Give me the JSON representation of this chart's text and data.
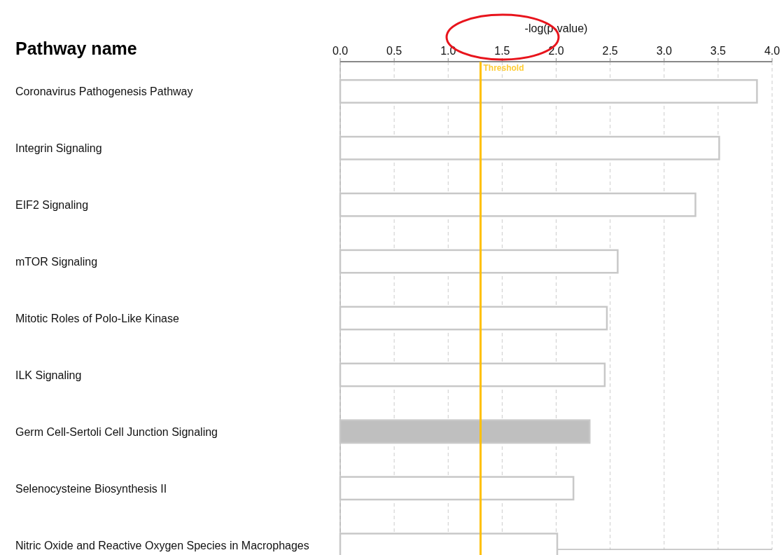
{
  "chart_data": {
    "type": "bar",
    "orientation": "horizontal",
    "xlabel": "-log(p-value)",
    "ylabel": "Pathway name",
    "categories": [
      "Coronavirus Pathogenesis Pathway",
      "Integrin Signaling",
      "EIF2 Signaling",
      "mTOR Signaling",
      "Mitotic Roles of Polo-Like Kinase",
      "ILK Signaling",
      "Germ Cell-Sertoli Cell Junction Signaling",
      "Selenocysteine Biosynthesis II",
      "Nitric Oxide and Reactive Oxygen Species in Macrophages"
    ],
    "values": [
      3.86,
      3.51,
      3.29,
      2.57,
      2.47,
      2.45,
      2.31,
      2.16,
      2.01
    ],
    "colors": [
      "#ffffff",
      "#ffffff",
      "#ffffff",
      "#ffffff",
      "#ffffff",
      "#ffffff",
      "#bfbfbf",
      "#ffffff",
      "#ffffff"
    ],
    "xlim": [
      0,
      4
    ],
    "xticks": [
      {
        "value": 0,
        "label": "0.0"
      },
      {
        "value": 0.5,
        "label": "0.5"
      },
      {
        "value": 1,
        "label": "1.0"
      },
      {
        "value": 1.5,
        "label": "1.5"
      },
      {
        "value": 2,
        "label": "2.0"
      },
      {
        "value": 2.5,
        "label": "2.5"
      },
      {
        "value": 3,
        "label": "3.0"
      },
      {
        "value": 3.5,
        "label": "3.5"
      },
      {
        "value": 4,
        "label": "4.0"
      }
    ],
    "grid": "x",
    "ref_lines": [
      {
        "axis": "x",
        "value": 1.3,
        "label": "Threshold",
        "color": "#ffc000"
      }
    ]
  }
}
